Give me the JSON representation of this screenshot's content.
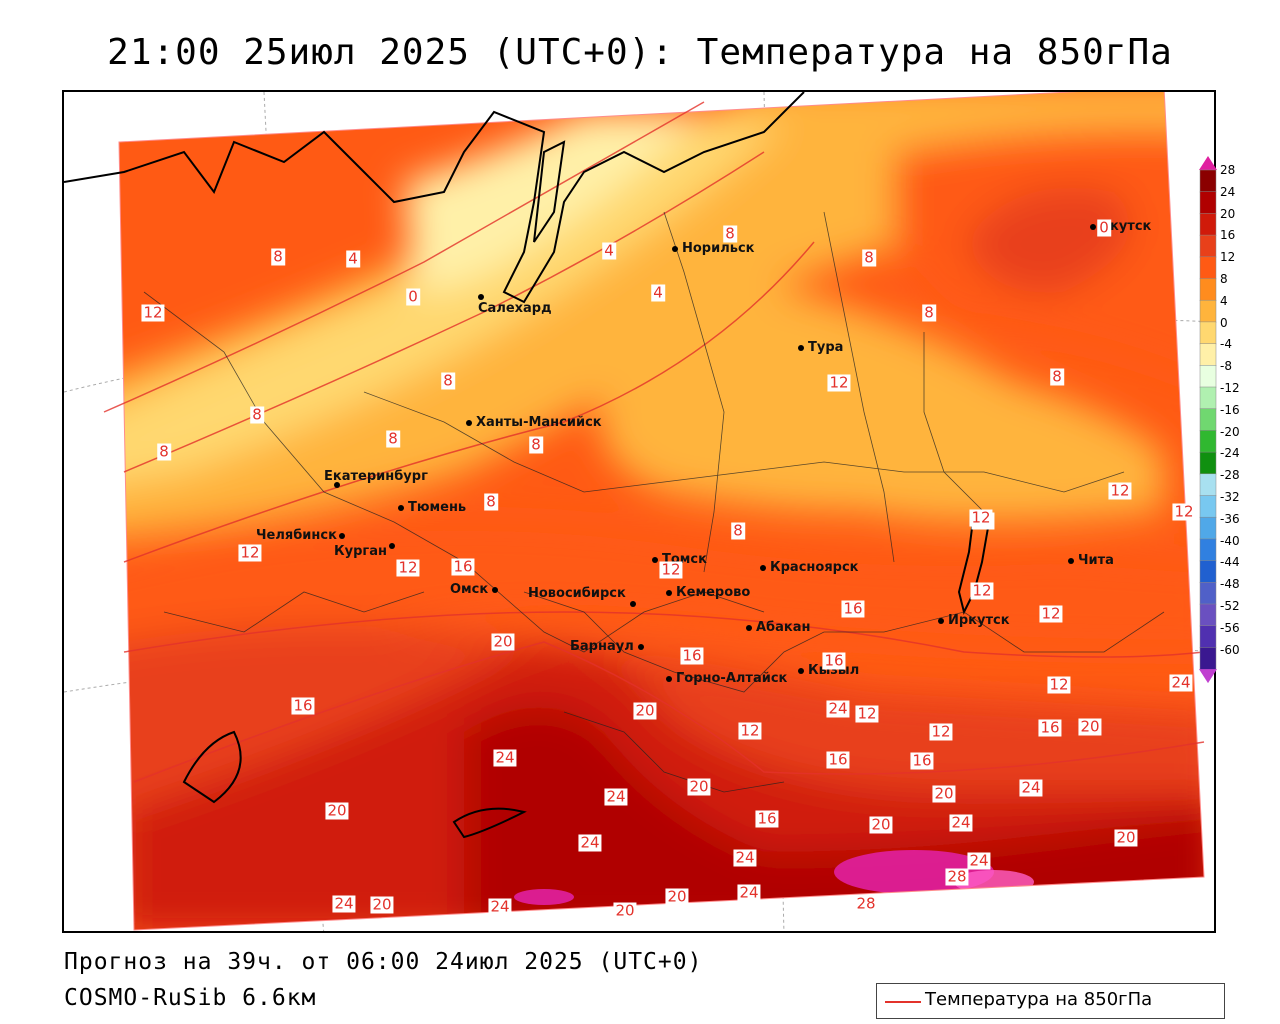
{
  "header": {
    "title": "21:00 25июл 2025 (UTC+0): Температура на 850гПа"
  },
  "footer": {
    "forecast": "Прогноз на 39ч. от 06:00 24июл 2025 (UTC+0)",
    "model": "COSMO-RuSib 6.6км"
  },
  "legend": {
    "label": "Температура на 850гПа",
    "line_color": "#e3322b"
  },
  "colorbar": {
    "ticks": [
      "28",
      "24",
      "20",
      "16",
      "12",
      "8",
      "4",
      "0",
      "-4",
      "-8",
      "-12",
      "-16",
      "-20",
      "-24",
      "-28",
      "-32",
      "-36",
      "-40",
      "-44",
      "-48",
      "-52",
      "-56",
      "-60"
    ],
    "colors": [
      "#8b0000",
      "#b00000",
      "#d01a0a",
      "#e8401a",
      "#ff5a14",
      "#ff8c1e",
      "#ffb43c",
      "#ffd870",
      "#fff0a8",
      "#e8ffe0",
      "#b0f0b0",
      "#70d870",
      "#30b830",
      "#109010",
      "#a8e0f0",
      "#78c8f0",
      "#50a8e8",
      "#3080e0",
      "#2060d0",
      "#5060c8",
      "#6a50c0",
      "#5030b0",
      "#3a1890"
    ],
    "top_color": "#e020a0",
    "bottom_color": "#c040d0"
  },
  "cities": [
    {
      "name": "Норильск"
    },
    {
      "name": "Якутск"
    },
    {
      "name": "Салехард"
    },
    {
      "name": "Тура"
    },
    {
      "name": "Ханты-Мансийск"
    },
    {
      "name": "Екатеринбург"
    },
    {
      "name": "Тюмень"
    },
    {
      "name": "Челябинск"
    },
    {
      "name": "Курган"
    },
    {
      "name": "Омск"
    },
    {
      "name": "Новосибирск"
    },
    {
      "name": "Томск"
    },
    {
      "name": "Кемерово"
    },
    {
      "name": "Красноярск"
    },
    {
      "name": "Абакан"
    },
    {
      "name": "Барнаул"
    },
    {
      "name": "Горно-Алтайск"
    },
    {
      "name": "Кызыл"
    },
    {
      "name": "Иркутск"
    },
    {
      "name": "Чита"
    }
  ],
  "contour_labels": [
    "8",
    "4",
    "0",
    "12",
    "8",
    "4",
    "4",
    "8",
    "8",
    "8",
    "0",
    "8",
    "8",
    "8",
    "12",
    "8",
    "8",
    "8",
    "8",
    "12",
    "12",
    "12",
    "12",
    "16",
    "12",
    "12",
    "20",
    "16",
    "16",
    "16",
    "12",
    "12",
    "12",
    "16",
    "16",
    "20",
    "12",
    "24",
    "24",
    "20",
    "20",
    "16",
    "16",
    "24",
    "20",
    "24",
    "20",
    "24",
    "24",
    "24",
    "24",
    "24",
    "28",
    "28",
    "20",
    "20",
    "24",
    "20",
    "24",
    "24",
    "20",
    "20",
    "16",
    "12",
    "16",
    "12"
  ]
}
